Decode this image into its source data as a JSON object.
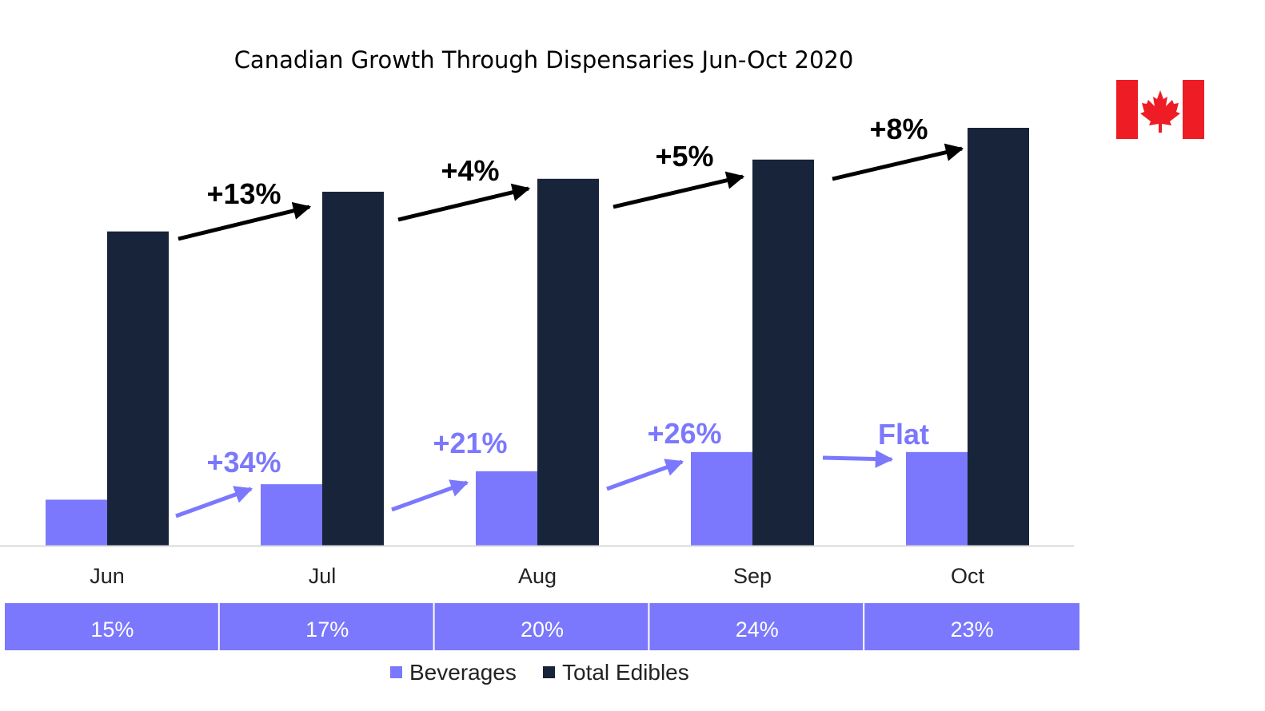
{
  "chart_data": {
    "type": "bar",
    "title": "Canadian Growth Through Dispensaries Jun-Oct 2020",
    "categories": [
      "Jun",
      "Jul",
      "Aug",
      "Sep",
      "Oct"
    ],
    "ylim": [
      0,
      100
    ],
    "series": [
      {
        "name": "Beverages",
        "color": "#7b78fd",
        "values": [
          11.0,
          14.7,
          17.8,
          22.4,
          22.4
        ]
      },
      {
        "name": "Total Edibles",
        "color": "#17243a",
        "values": [
          75.2,
          84.7,
          87.8,
          92.4,
          100.0
        ]
      }
    ],
    "share_row": [
      "15%",
      "17%",
      "20%",
      "24%",
      "23%"
    ],
    "growth_labels": {
      "Total Edibles": [
        "+13%",
        "+4%",
        "+5%",
        "+8%"
      ],
      "Beverages": [
        "+34%",
        "+21%",
        "+26%",
        "Flat"
      ]
    },
    "legend": [
      "Beverages",
      "Total Edibles"
    ],
    "legend_position": "bottom"
  },
  "flag": {
    "icon": "canada-flag-icon",
    "color_red": "#ee1c25",
    "color_white": "#ffffff"
  }
}
